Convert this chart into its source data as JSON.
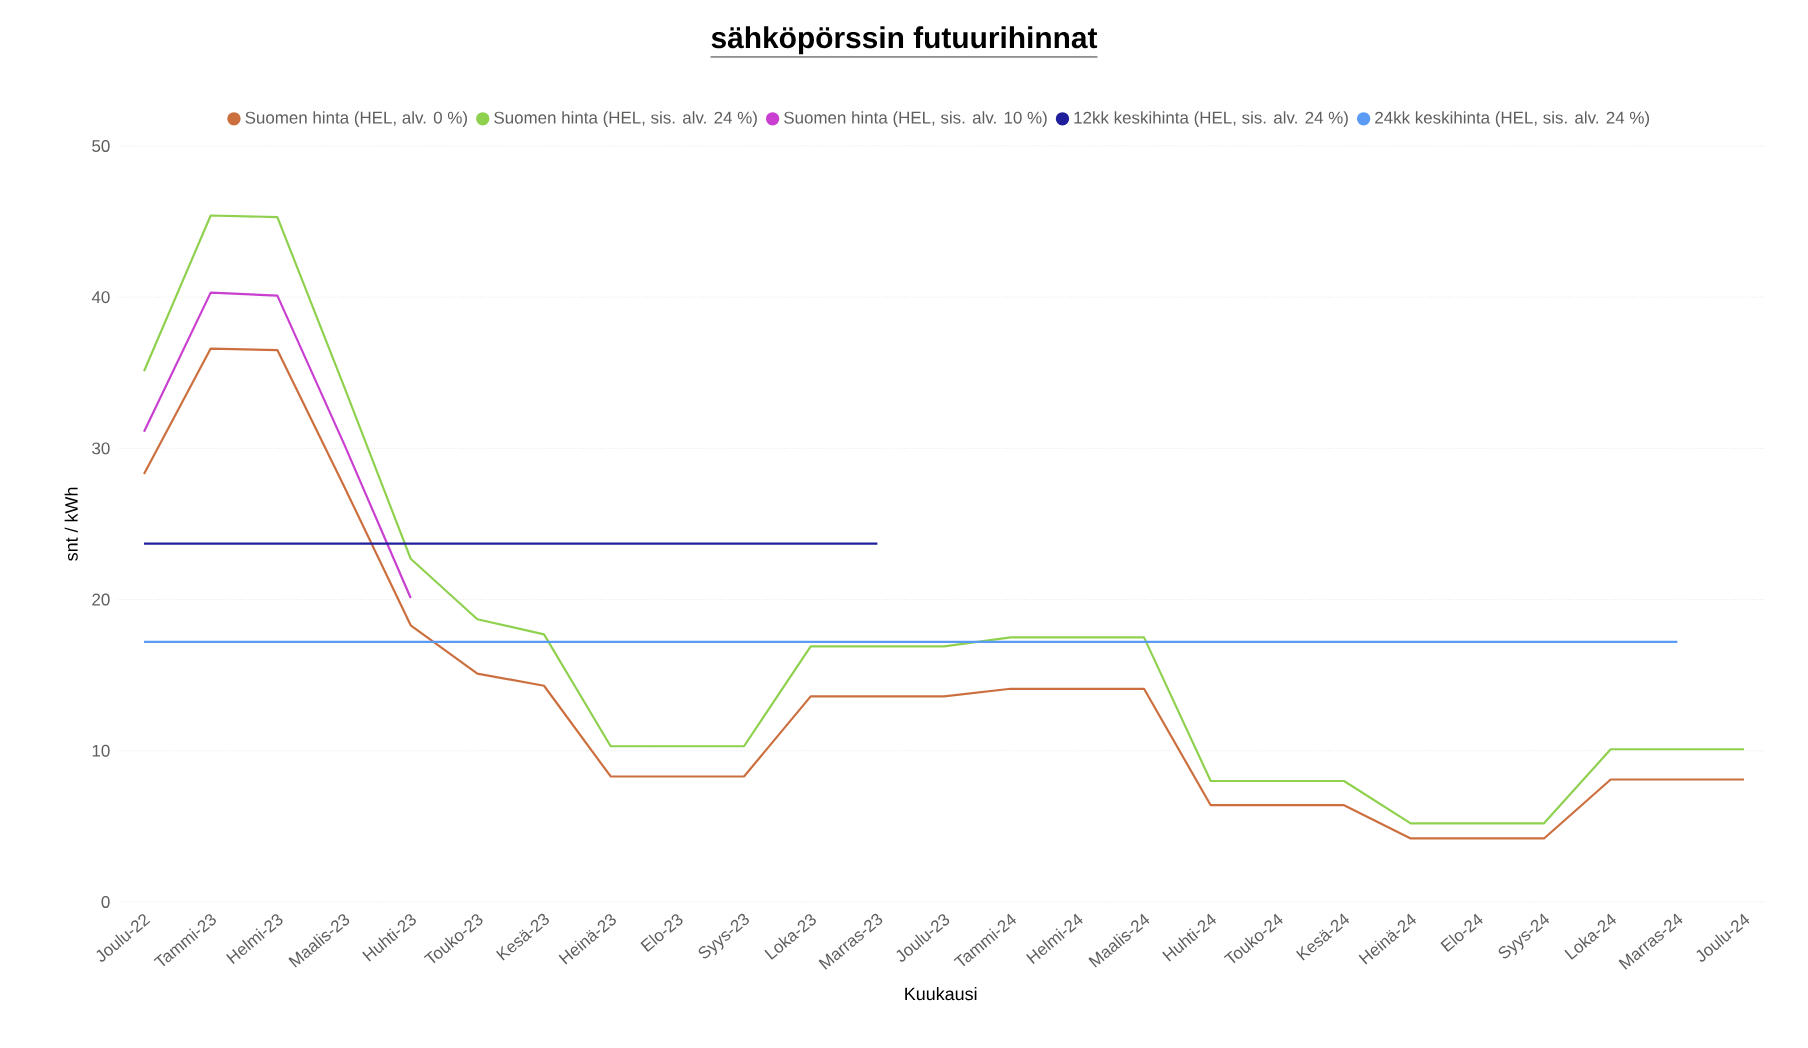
{
  "chart_data": {
    "type": "line",
    "title": "sähköpörssin futuurihinnat",
    "xlabel": "Kuukausi",
    "ylabel": "snt / kWh",
    "categories": [
      "Joulu-22",
      "Tammi-23",
      "Helmi-23",
      "Maalis-23",
      "Huhti-23",
      "Touko-23",
      "Kesä-23",
      "Heinä-23",
      "Elo-23",
      "Syys-23",
      "Loka-23",
      "Marras-23",
      "Joulu-23",
      "Tammi-24",
      "Helmi-24",
      "Maalis-24",
      "Huhti-24",
      "Touko-24",
      "Kesä-24",
      "Heinä-24",
      "Elo-24",
      "Syys-24",
      "Loka-24",
      "Marras-24",
      "Joulu-24"
    ],
    "series": [
      {
        "name": "Suomen hinta (HEL, alv. 0 %)",
        "color": "#cc6f3f",
        "values": [
          28.3,
          36.6,
          36.5,
          27.5,
          18.3,
          15.1,
          14.3,
          8.3,
          8.3,
          8.3,
          13.6,
          13.6,
          13.6,
          14.1,
          14.1,
          14.1,
          6.4,
          6.4,
          6.4,
          4.2,
          4.2,
          4.2,
          8.1,
          8.1,
          8.1
        ]
      },
      {
        "name": "Suomen hinta (HEL, sis. alv. 24 %)",
        "color": "#8fd14f",
        "values": [
          35.1,
          45.4,
          45.3,
          34.1,
          22.7,
          18.7,
          17.7,
          10.3,
          10.3,
          10.3,
          16.9,
          16.9,
          16.9,
          17.5,
          17.5,
          17.5,
          8.0,
          8.0,
          8.0,
          5.2,
          5.2,
          5.2,
          10.1,
          10.1,
          10.1
        ]
      },
      {
        "name": "Suomen hinta (HEL, sis. alv. 10 %)",
        "color": "#c93fd0",
        "values": [
          31.1,
          40.3,
          40.1,
          30.3,
          20.1,
          null,
          null,
          null,
          null,
          null,
          null,
          null,
          null,
          null,
          null,
          null,
          null,
          null,
          null,
          null,
          null,
          null,
          null,
          null,
          null
        ]
      },
      {
        "name": "12kk keskihinta (HEL, sis. alv. 24 %)",
        "color": "#1f1f9c",
        "values": [
          23.7,
          23.7,
          23.7,
          23.7,
          23.7,
          23.7,
          23.7,
          23.7,
          23.7,
          23.7,
          23.7,
          23.7,
          null,
          null,
          null,
          null,
          null,
          null,
          null,
          null,
          null,
          null,
          null,
          null,
          null
        ]
      },
      {
        "name": "24kk keskihinta (HEL, sis. alv. 24 %)",
        "color": "#5b9bf5",
        "values": [
          17.2,
          17.2,
          17.2,
          17.2,
          17.2,
          17.2,
          17.2,
          17.2,
          17.2,
          17.2,
          17.2,
          17.2,
          17.2,
          17.2,
          17.2,
          17.2,
          17.2,
          17.2,
          17.2,
          17.2,
          17.2,
          17.2,
          17.2,
          17.2,
          null
        ]
      }
    ],
    "ylim": [
      0,
      50
    ],
    "yticks": [
      0,
      10,
      20,
      30,
      40,
      50
    ],
    "grid": "y",
    "legend": "top",
    "marker": "none",
    "line_style": "solid"
  }
}
